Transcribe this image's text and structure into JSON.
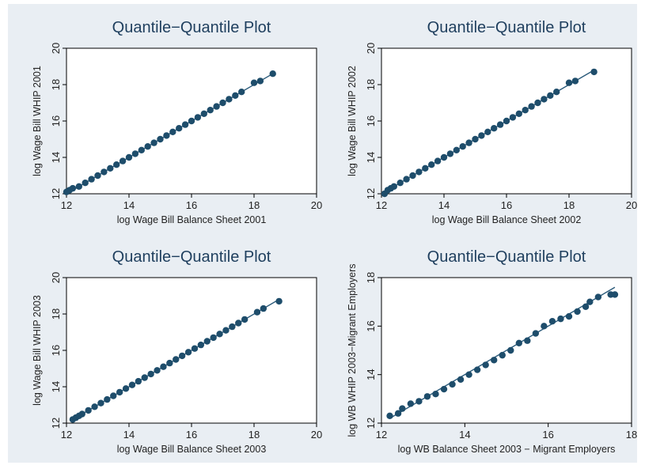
{
  "colors": {
    "marker": "#1e4d6b",
    "title": "#1f3f5e",
    "background": "#e9eef3",
    "plot_area": "#ffffff"
  },
  "chart_data": [
    {
      "type": "scatter",
      "title": "Quantile−Quantile Plot",
      "xlabel": "log Wage Bill Balance Sheet 2001",
      "ylabel": "log Wage Bill WHIP 2001",
      "xlim": [
        12,
        20
      ],
      "ylim": [
        12,
        20
      ],
      "xticks": [
        "12",
        "14",
        "16",
        "18",
        "20"
      ],
      "yticks": [
        "12",
        "14",
        "16",
        "18",
        "20"
      ],
      "reference_line": true,
      "points": [
        [
          12.0,
          12.1
        ],
        [
          12.1,
          12.2
        ],
        [
          12.2,
          12.3
        ],
        [
          12.4,
          12.4
        ],
        [
          12.6,
          12.6
        ],
        [
          12.8,
          12.8
        ],
        [
          13.0,
          13.0
        ],
        [
          13.2,
          13.2
        ],
        [
          13.4,
          13.4
        ],
        [
          13.6,
          13.6
        ],
        [
          13.8,
          13.8
        ],
        [
          14.0,
          14.0
        ],
        [
          14.2,
          14.2
        ],
        [
          14.4,
          14.4
        ],
        [
          14.6,
          14.6
        ],
        [
          14.8,
          14.8
        ],
        [
          15.0,
          15.0
        ],
        [
          15.2,
          15.2
        ],
        [
          15.4,
          15.4
        ],
        [
          15.6,
          15.6
        ],
        [
          15.8,
          15.8
        ],
        [
          16.0,
          16.0
        ],
        [
          16.2,
          16.2
        ],
        [
          16.4,
          16.4
        ],
        [
          16.6,
          16.6
        ],
        [
          16.8,
          16.8
        ],
        [
          17.0,
          17.0
        ],
        [
          17.2,
          17.2
        ],
        [
          17.4,
          17.4
        ],
        [
          17.6,
          17.6
        ],
        [
          18.0,
          18.1
        ],
        [
          18.2,
          18.2
        ],
        [
          18.6,
          18.6
        ]
      ]
    },
    {
      "type": "scatter",
      "title": "Quantile−Quantile Plot",
      "xlabel": "log Wage Bill Balance Sheet 2002",
      "ylabel": "log Wage Bill WHIP 2002",
      "xlim": [
        12,
        20
      ],
      "ylim": [
        12,
        20
      ],
      "xticks": [
        "12",
        "14",
        "16",
        "18",
        "20"
      ],
      "yticks": [
        "12",
        "14",
        "16",
        "18",
        "20"
      ],
      "reference_line": true,
      "points": [
        [
          12.1,
          12.0
        ],
        [
          12.2,
          12.2
        ],
        [
          12.3,
          12.3
        ],
        [
          12.4,
          12.4
        ],
        [
          12.6,
          12.6
        ],
        [
          12.8,
          12.8
        ],
        [
          13.0,
          13.0
        ],
        [
          13.2,
          13.2
        ],
        [
          13.4,
          13.4
        ],
        [
          13.6,
          13.6
        ],
        [
          13.8,
          13.8
        ],
        [
          14.0,
          14.0
        ],
        [
          14.2,
          14.2
        ],
        [
          14.4,
          14.4
        ],
        [
          14.6,
          14.6
        ],
        [
          14.8,
          14.8
        ],
        [
          15.0,
          15.0
        ],
        [
          15.2,
          15.2
        ],
        [
          15.4,
          15.4
        ],
        [
          15.6,
          15.6
        ],
        [
          15.8,
          15.8
        ],
        [
          16.0,
          16.0
        ],
        [
          16.2,
          16.2
        ],
        [
          16.4,
          16.4
        ],
        [
          16.6,
          16.6
        ],
        [
          16.8,
          16.8
        ],
        [
          17.0,
          17.0
        ],
        [
          17.2,
          17.2
        ],
        [
          17.4,
          17.4
        ],
        [
          17.6,
          17.6
        ],
        [
          18.0,
          18.1
        ],
        [
          18.2,
          18.2
        ],
        [
          18.8,
          18.7
        ]
      ]
    },
    {
      "type": "scatter",
      "title": "Quantile−Quantile Plot",
      "xlabel": "log Wage Bill Balance Sheet 2003",
      "ylabel": "log Wage Bill WHIP 2003",
      "xlim": [
        12,
        20
      ],
      "ylim": [
        12,
        20
      ],
      "xticks": [
        "12",
        "14",
        "16",
        "18",
        "20"
      ],
      "yticks": [
        "12",
        "14",
        "16",
        "18",
        "20"
      ],
      "reference_line": true,
      "points": [
        [
          12.2,
          12.2
        ],
        [
          12.3,
          12.3
        ],
        [
          12.4,
          12.4
        ],
        [
          12.5,
          12.5
        ],
        [
          12.7,
          12.7
        ],
        [
          12.9,
          12.9
        ],
        [
          13.1,
          13.1
        ],
        [
          13.3,
          13.3
        ],
        [
          13.5,
          13.5
        ],
        [
          13.7,
          13.7
        ],
        [
          13.9,
          13.9
        ],
        [
          14.1,
          14.1
        ],
        [
          14.3,
          14.3
        ],
        [
          14.5,
          14.5
        ],
        [
          14.7,
          14.7
        ],
        [
          14.9,
          14.9
        ],
        [
          15.1,
          15.1
        ],
        [
          15.3,
          15.3
        ],
        [
          15.5,
          15.5
        ],
        [
          15.7,
          15.7
        ],
        [
          15.9,
          15.9
        ],
        [
          16.1,
          16.1
        ],
        [
          16.3,
          16.3
        ],
        [
          16.5,
          16.5
        ],
        [
          16.7,
          16.7
        ],
        [
          16.9,
          16.9
        ],
        [
          17.1,
          17.1
        ],
        [
          17.3,
          17.3
        ],
        [
          17.5,
          17.5
        ],
        [
          17.7,
          17.7
        ],
        [
          18.1,
          18.1
        ],
        [
          18.3,
          18.3
        ],
        [
          18.8,
          18.7
        ]
      ]
    },
    {
      "type": "scatter",
      "title": "Quantile−Quantile Plot",
      "xlabel": "log WB Balance Sheet 2003 − Migrant Employers",
      "ylabel": "log WB WHIP 2003−Migrant Employers",
      "xlim": [
        12,
        18
      ],
      "ylim": [
        12,
        18
      ],
      "xticks": [
        "12",
        "14",
        "16",
        "18"
      ],
      "yticks": [
        "12",
        "14",
        "16",
        "18"
      ],
      "reference_line": true,
      "points": [
        [
          12.2,
          12.3
        ],
        [
          12.4,
          12.4
        ],
        [
          12.5,
          12.6
        ],
        [
          12.7,
          12.8
        ],
        [
          12.9,
          12.9
        ],
        [
          13.1,
          13.1
        ],
        [
          13.3,
          13.2
        ],
        [
          13.5,
          13.4
        ],
        [
          13.7,
          13.6
        ],
        [
          13.9,
          13.8
        ],
        [
          14.1,
          14.0
        ],
        [
          14.3,
          14.2
        ],
        [
          14.5,
          14.4
        ],
        [
          14.7,
          14.6
        ],
        [
          14.9,
          14.8
        ],
        [
          15.1,
          15.0
        ],
        [
          15.3,
          15.3
        ],
        [
          15.5,
          15.4
        ],
        [
          15.7,
          15.7
        ],
        [
          15.9,
          16.0
        ],
        [
          16.1,
          16.2
        ],
        [
          16.3,
          16.3
        ],
        [
          16.5,
          16.4
        ],
        [
          16.7,
          16.6
        ],
        [
          16.9,
          16.8
        ],
        [
          17.0,
          17.0
        ],
        [
          17.2,
          17.2
        ],
        [
          17.5,
          17.3
        ],
        [
          17.6,
          17.3
        ]
      ]
    }
  ]
}
